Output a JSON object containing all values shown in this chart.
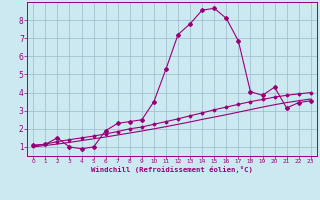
{
  "xlabel": "Windchill (Refroidissement éolien,°C)",
  "bg_color": "#cce8f0",
  "grid_color": "#99bbcc",
  "line_color": "#990077",
  "xlim": [
    -0.5,
    23.5
  ],
  "ylim": [
    0.5,
    9.0
  ],
  "xticks": [
    0,
    1,
    2,
    3,
    4,
    5,
    6,
    7,
    8,
    9,
    10,
    11,
    12,
    13,
    14,
    15,
    16,
    17,
    18,
    19,
    20,
    21,
    22,
    23
  ],
  "yticks": [
    1,
    2,
    3,
    4,
    5,
    6,
    7,
    8
  ],
  "line1_x": [
    0,
    1,
    2,
    3,
    4,
    5,
    6,
    7,
    8,
    9,
    10,
    11,
    12,
    13,
    14,
    15,
    16,
    17,
    18,
    19,
    20,
    21,
    22,
    23
  ],
  "line1_y": [
    1.1,
    1.15,
    1.5,
    1.0,
    0.9,
    1.0,
    1.9,
    2.3,
    2.4,
    2.5,
    3.5,
    5.3,
    7.2,
    7.8,
    8.55,
    8.65,
    8.1,
    6.85,
    4.05,
    3.85,
    4.3,
    3.15,
    3.45,
    3.55
  ],
  "line2_x": [
    0,
    1,
    2,
    3,
    4,
    5,
    6,
    7,
    8,
    9,
    10,
    11,
    12,
    13,
    14,
    15,
    16,
    17,
    18,
    19,
    20,
    21,
    22,
    23
  ],
  "line2_y": [
    1.05,
    1.15,
    1.3,
    1.4,
    1.5,
    1.6,
    1.72,
    1.85,
    2.0,
    2.1,
    2.25,
    2.4,
    2.55,
    2.72,
    2.88,
    3.05,
    3.2,
    3.35,
    3.5,
    3.62,
    3.75,
    3.85,
    3.93,
    4.0
  ],
  "line3_x": [
    0,
    1,
    2,
    3,
    4,
    5,
    6,
    7,
    8,
    9,
    10,
    11,
    12,
    13,
    14,
    15,
    16,
    17,
    18,
    19,
    20,
    21,
    22,
    23
  ],
  "line3_y": [
    1.0,
    1.08,
    1.16,
    1.25,
    1.35,
    1.45,
    1.55,
    1.66,
    1.77,
    1.88,
    2.0,
    2.12,
    2.25,
    2.38,
    2.52,
    2.65,
    2.78,
    2.92,
    3.06,
    3.2,
    3.33,
    3.45,
    3.55,
    3.65
  ]
}
